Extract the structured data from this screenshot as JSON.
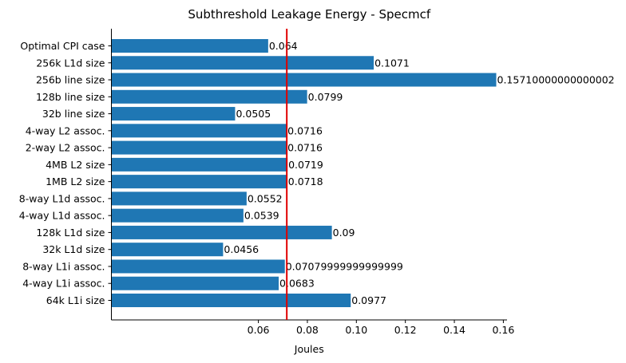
{
  "chart_data": {
    "type": "bar",
    "orientation": "horizontal",
    "title": "Subthreshold Leakage Energy - Specmcf",
    "xlabel": "Joules",
    "ylabel": "",
    "xlim": [
      0.0,
      0.1615
    ],
    "xticks": [
      0.06,
      0.08,
      0.1,
      0.12,
      0.14,
      0.16
    ],
    "xtick_labels": [
      "0.06",
      "0.08",
      "0.10",
      "0.12",
      "0.14",
      "0.16"
    ],
    "categories": [
      "Optimal CPI case",
      "256k L1d size",
      "256b line size",
      "128b line size",
      "32b line size",
      "4-way L2 assoc.",
      "2-way L2 assoc.",
      "4MB L2 size",
      "1MB L2 size",
      "8-way L1d assoc.",
      "4-way L1d assoc.",
      "128k L1d size",
      "32k L1d size",
      "8-way L1i assoc.",
      "4-way L1i assoc.",
      "64k L1i size"
    ],
    "values": [
      0.064,
      0.1071,
      0.1571,
      0.0799,
      0.0505,
      0.0716,
      0.0716,
      0.0719,
      0.0718,
      0.0552,
      0.0539,
      0.09,
      0.0456,
      0.0708,
      0.0683,
      0.0977
    ],
    "value_labels": [
      "0.064",
      "0.1071",
      "0.15710000000000002",
      "0.0799",
      "0.0505",
      "0.0716",
      "0.0716",
      "0.0719",
      "0.0718",
      "0.0552",
      "0.0539",
      "0.09",
      "0.0456",
      "0.07079999999999999",
      "0.0683",
      "0.0977"
    ],
    "reference_line": {
      "value": 0.0716,
      "color": "#e00000",
      "orientation": "vertical"
    },
    "bar_color": "#1f77b4",
    "grid": false,
    "legend": "none"
  }
}
